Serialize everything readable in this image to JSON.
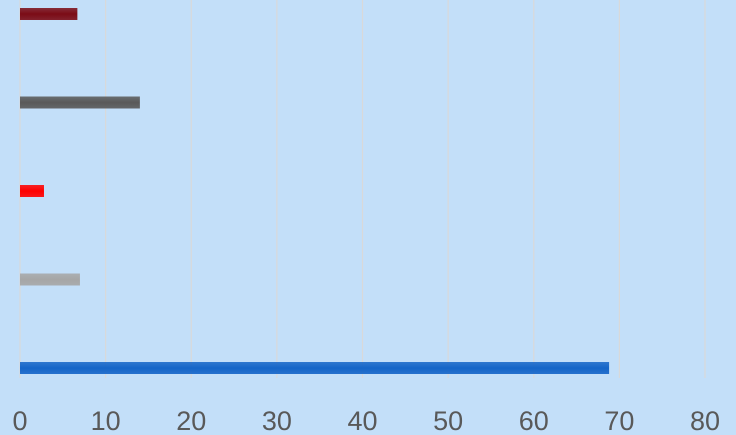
{
  "chart_data": {
    "type": "bar",
    "orientation": "horizontal",
    "categories": [
      "",
      "",
      "",
      "",
      ""
    ],
    "series": [
      {
        "values": [
          68.8,
          7.0,
          2.8,
          14.0,
          6.7
        ],
        "colors": [
          "#1565c8",
          "#a6a6a6",
          "#ff0000",
          "#595959",
          "#7b0c16"
        ]
      }
    ],
    "title": "",
    "xlabel": "",
    "ylabel": "",
    "xlim": [
      0,
      80
    ],
    "xticks": [
      "0",
      "10",
      "20",
      "30",
      "40",
      "50",
      "60",
      "70",
      "80"
    ],
    "grid": "vertical",
    "legend": "none"
  },
  "colors": {
    "background": "#c3dff9",
    "gridline": "#d9d9d9",
    "tick_text": "#595959"
  }
}
